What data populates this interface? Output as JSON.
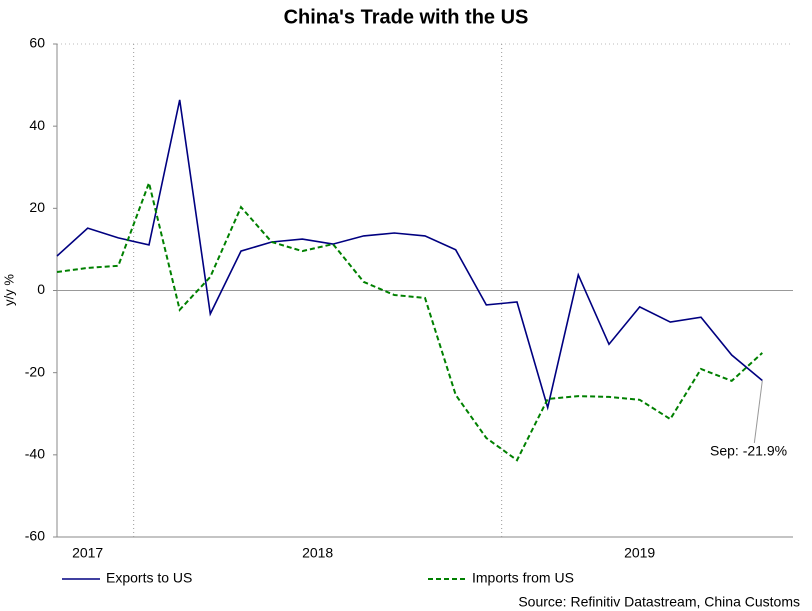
{
  "chart_data": {
    "type": "line",
    "title": "China's Trade with the US",
    "y_label": "y/y %",
    "x": [
      "2017-10",
      "2017-11",
      "2017-12",
      "2018-01",
      "2018-02",
      "2018-03",
      "2018-04",
      "2018-05",
      "2018-06",
      "2018-07",
      "2018-08",
      "2018-09",
      "2018-10",
      "2018-11",
      "2018-12",
      "2019-01",
      "2019-02",
      "2019-03",
      "2019-04",
      "2019-05",
      "2019-06",
      "2019-07",
      "2019-08",
      "2019-09"
    ],
    "series": [
      {
        "name": "Exports to US",
        "color": "#000080",
        "dashed": false,
        "values": [
          8.4,
          15.2,
          12.8,
          11.1,
          46.4,
          -5.7,
          9.6,
          11.8,
          12.5,
          11.3,
          13.3,
          14.0,
          13.3,
          9.9,
          -3.5,
          -2.8,
          -28.5,
          3.8,
          -13.1,
          -4.0,
          -7.7,
          -6.5,
          -15.7,
          -21.9
        ]
      },
      {
        "name": "Imports from US",
        "color": "#008000",
        "dashed": true,
        "values": [
          4.5,
          5.5,
          6.0,
          26.2,
          -4.7,
          3.3,
          20.3,
          11.8,
          9.6,
          11.3,
          2.1,
          -1.1,
          -1.8,
          -25.4,
          -35.9,
          -41.3,
          -26.4,
          -25.7,
          -25.9,
          -26.6,
          -31.3,
          -19.1,
          -22.0,
          -15.2
        ]
      }
    ],
    "annotation": "Sep: -21.9%",
    "source": "Source: Refinitiv Datastream, China Customs",
    "xlim": [
      "2017-10",
      "2019-10"
    ],
    "xticks": [
      "2017",
      "2018",
      "2019"
    ],
    "ylim": [
      -60,
      60
    ],
    "yticks": [
      -60,
      -40,
      -20,
      0,
      20,
      40,
      60
    ]
  }
}
